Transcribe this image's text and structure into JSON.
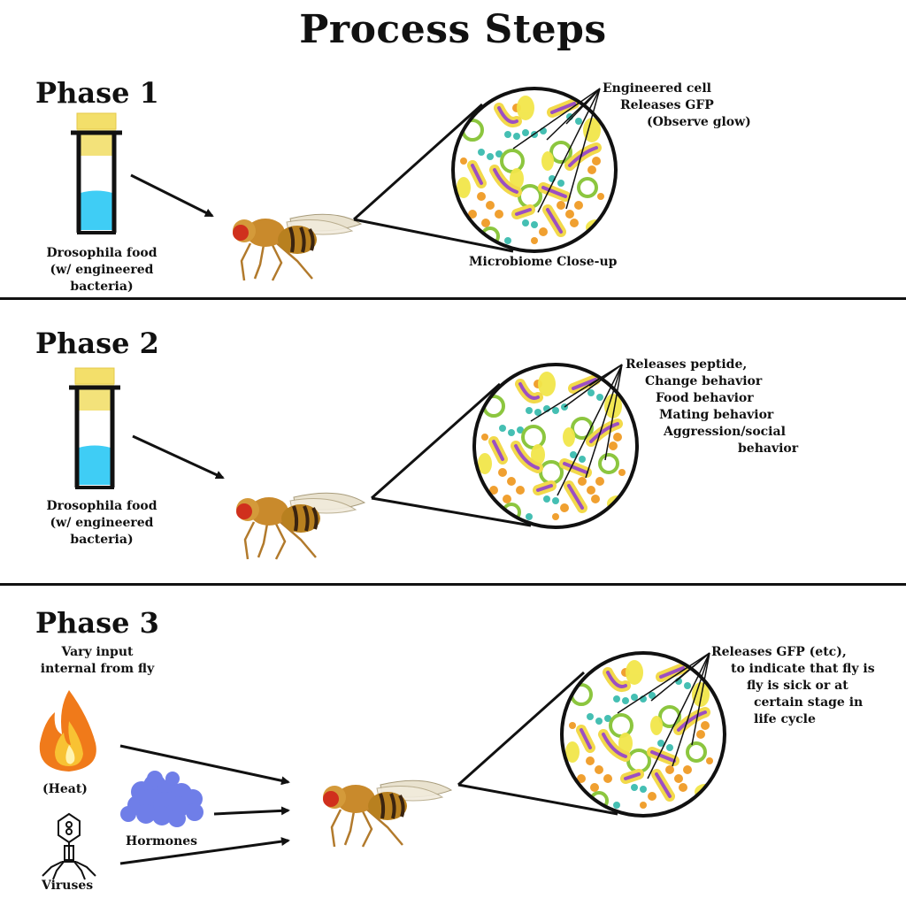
{
  "title": "Process Steps",
  "phase1": {
    "label": "Phase 1",
    "food_caption": [
      "Drosophila food",
      "(w/ engineered",
      "bacteria)"
    ],
    "closeup_caption": "Microbiome Close-up",
    "annotation": [
      "Engineered cell",
      "Releases GFP",
      "(Observe glow)"
    ]
  },
  "phase2": {
    "label": "Phase 2",
    "food_caption": [
      "Drosophila food",
      "(w/ engineered",
      "bacteria)"
    ],
    "annotation": [
      "Releases peptide,",
      "Change behavior",
      "Food behavior",
      "Mating behavior",
      "Aggression/social",
      "behavior"
    ]
  },
  "phase3": {
    "label": "Phase 3",
    "intro": [
      "Vary input",
      "internal from fly"
    ],
    "heat_label": "(Heat)",
    "hormones_label": "Hormones",
    "viruses_label": "Viruses",
    "annotation": [
      "Releases GFP (etc),",
      "to indicate that fly is",
      "fly is sick or at",
      "certain stage in",
      "life cycle"
    ]
  },
  "icons": {
    "food_vial": "vial-icon",
    "fly": "fruit-fly-icon",
    "microbiome": "microbiome-closeup-icon",
    "fire": "fire-icon",
    "hormone": "protein-blob-icon",
    "virus": "bacteriophage-icon"
  },
  "colors": {
    "vial_liquid": "#3fcdf5",
    "vial_cap": "#f3df6a",
    "fly_body": "#c98a2c",
    "fly_eye": "#d0301d",
    "bacteria_purple": "#9c4fc2",
    "bacteria_yellow": "#f2e64a",
    "dots_orange": "#f0a030",
    "dots_teal": "#45bfb3",
    "hormone_blue": "#6f7ee8"
  }
}
